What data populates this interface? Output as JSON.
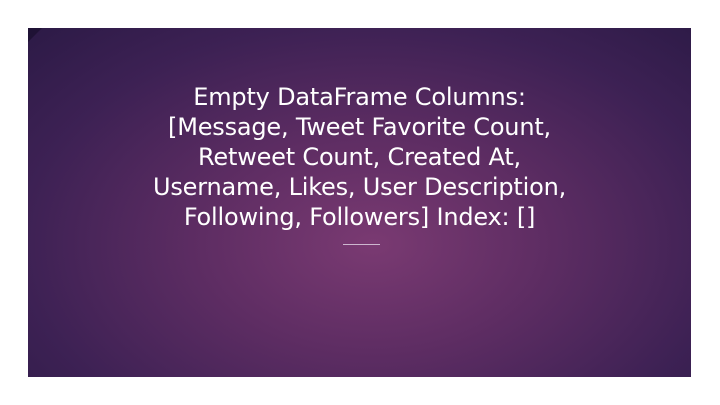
{
  "slide": {
    "title_lines": [
      "Empty DataFrame Columns:",
      "[Message, Tweet Favorite Count,",
      "Retweet Count, Created At,",
      "Username, Likes, User Description,",
      "Following, Followers] Index: []"
    ]
  },
  "colors": {
    "background_center": "#7a3a72",
    "background_edge": "#2c1a46",
    "text": "#ffffff",
    "accent": "#1f1235"
  }
}
